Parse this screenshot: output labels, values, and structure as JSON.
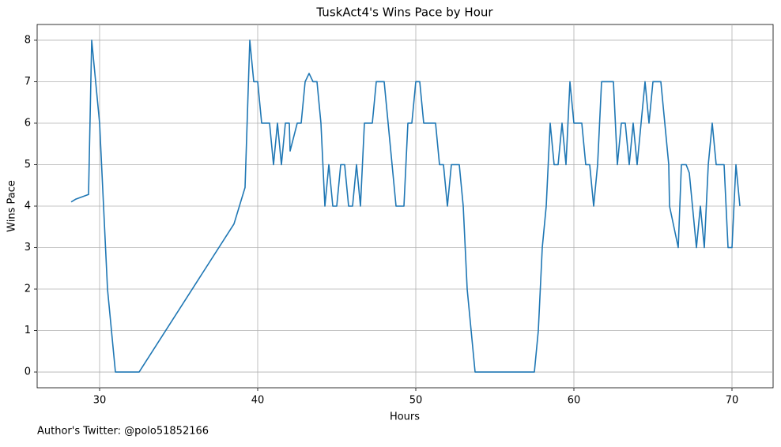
{
  "chart_data": {
    "type": "line",
    "title": "TuskAct4's Wins Pace by Hour",
    "x_label": "Hours",
    "y_label": "Wins Pace",
    "annotation": "Author's Twitter: @polo51852166",
    "color": "#1f77b4",
    "grid": true,
    "xlim": [
      26.05,
      72.6
    ],
    "ylim": [
      -0.38,
      8.38
    ],
    "xticks": [
      30,
      40,
      50,
      60,
      70
    ],
    "yticks": [
      0,
      1,
      2,
      3,
      4,
      5,
      6,
      7,
      8
    ],
    "x": [
      28.2,
      28.5,
      29.3,
      29.5,
      30,
      30.5,
      31,
      32.5,
      38.5,
      39.2,
      39.5,
      39.75,
      40,
      40.25,
      40.75,
      41,
      41.25,
      41.5,
      41.75,
      42,
      42.05,
      42.5,
      42.75,
      43,
      43.25,
      43.5,
      43.75,
      44,
      44.25,
      44.5,
      44.75,
      45,
      45.25,
      45.5,
      45.75,
      46,
      46.25,
      46.5,
      46.75,
      47,
      47.25,
      47.5,
      48,
      48.5,
      48.75,
      49.25,
      49.5,
      49.75,
      50,
      50.25,
      50.5,
      51.25,
      51.5,
      51.75,
      52,
      52.25,
      52.75,
      53,
      53.25,
      53.75,
      57.5,
      57.75,
      58,
      58.25,
      58.5,
      58.75,
      59,
      59.25,
      59.5,
      59.75,
      60,
      60.5,
      60.75,
      61,
      61.25,
      61.5,
      61.75,
      62.5,
      62.75,
      63,
      63.25,
      63.5,
      63.75,
      64,
      64.25,
      64.5,
      64.75,
      65,
      65.5,
      66,
      66.05,
      66.6,
      66.8,
      67.1,
      67.3,
      67.5,
      67.75,
      68,
      68.25,
      68.5,
      68.75,
      69,
      69.5,
      69.75,
      70,
      70.25,
      70.5
    ],
    "values": [
      4.1,
      4.17,
      4.28,
      8,
      6,
      2,
      0,
      0,
      3.57,
      4.45,
      8,
      7,
      7,
      6,
      6,
      5,
      6,
      5,
      6,
      6,
      5.33,
      6,
      6,
      7,
      7.2,
      7,
      7,
      6,
      4,
      5,
      4,
      4,
      5,
      5,
      4,
      4,
      5,
      4,
      6,
      6,
      6,
      7,
      7,
      5,
      4,
      4,
      6,
      6,
      7,
      7,
      6,
      6,
      5,
      5,
      4,
      5,
      5,
      4,
      2,
      0,
      0,
      1,
      3,
      4,
      6,
      5,
      5,
      6,
      5,
      7,
      6,
      6,
      5,
      5,
      4,
      5,
      7,
      7,
      5,
      6,
      6,
      5,
      6,
      5,
      6,
      7,
      6,
      7,
      7,
      5,
      4,
      3,
      5,
      5,
      4.8,
      4,
      3,
      4,
      3,
      5,
      6,
      5,
      5,
      3,
      3,
      5,
      4
    ]
  }
}
